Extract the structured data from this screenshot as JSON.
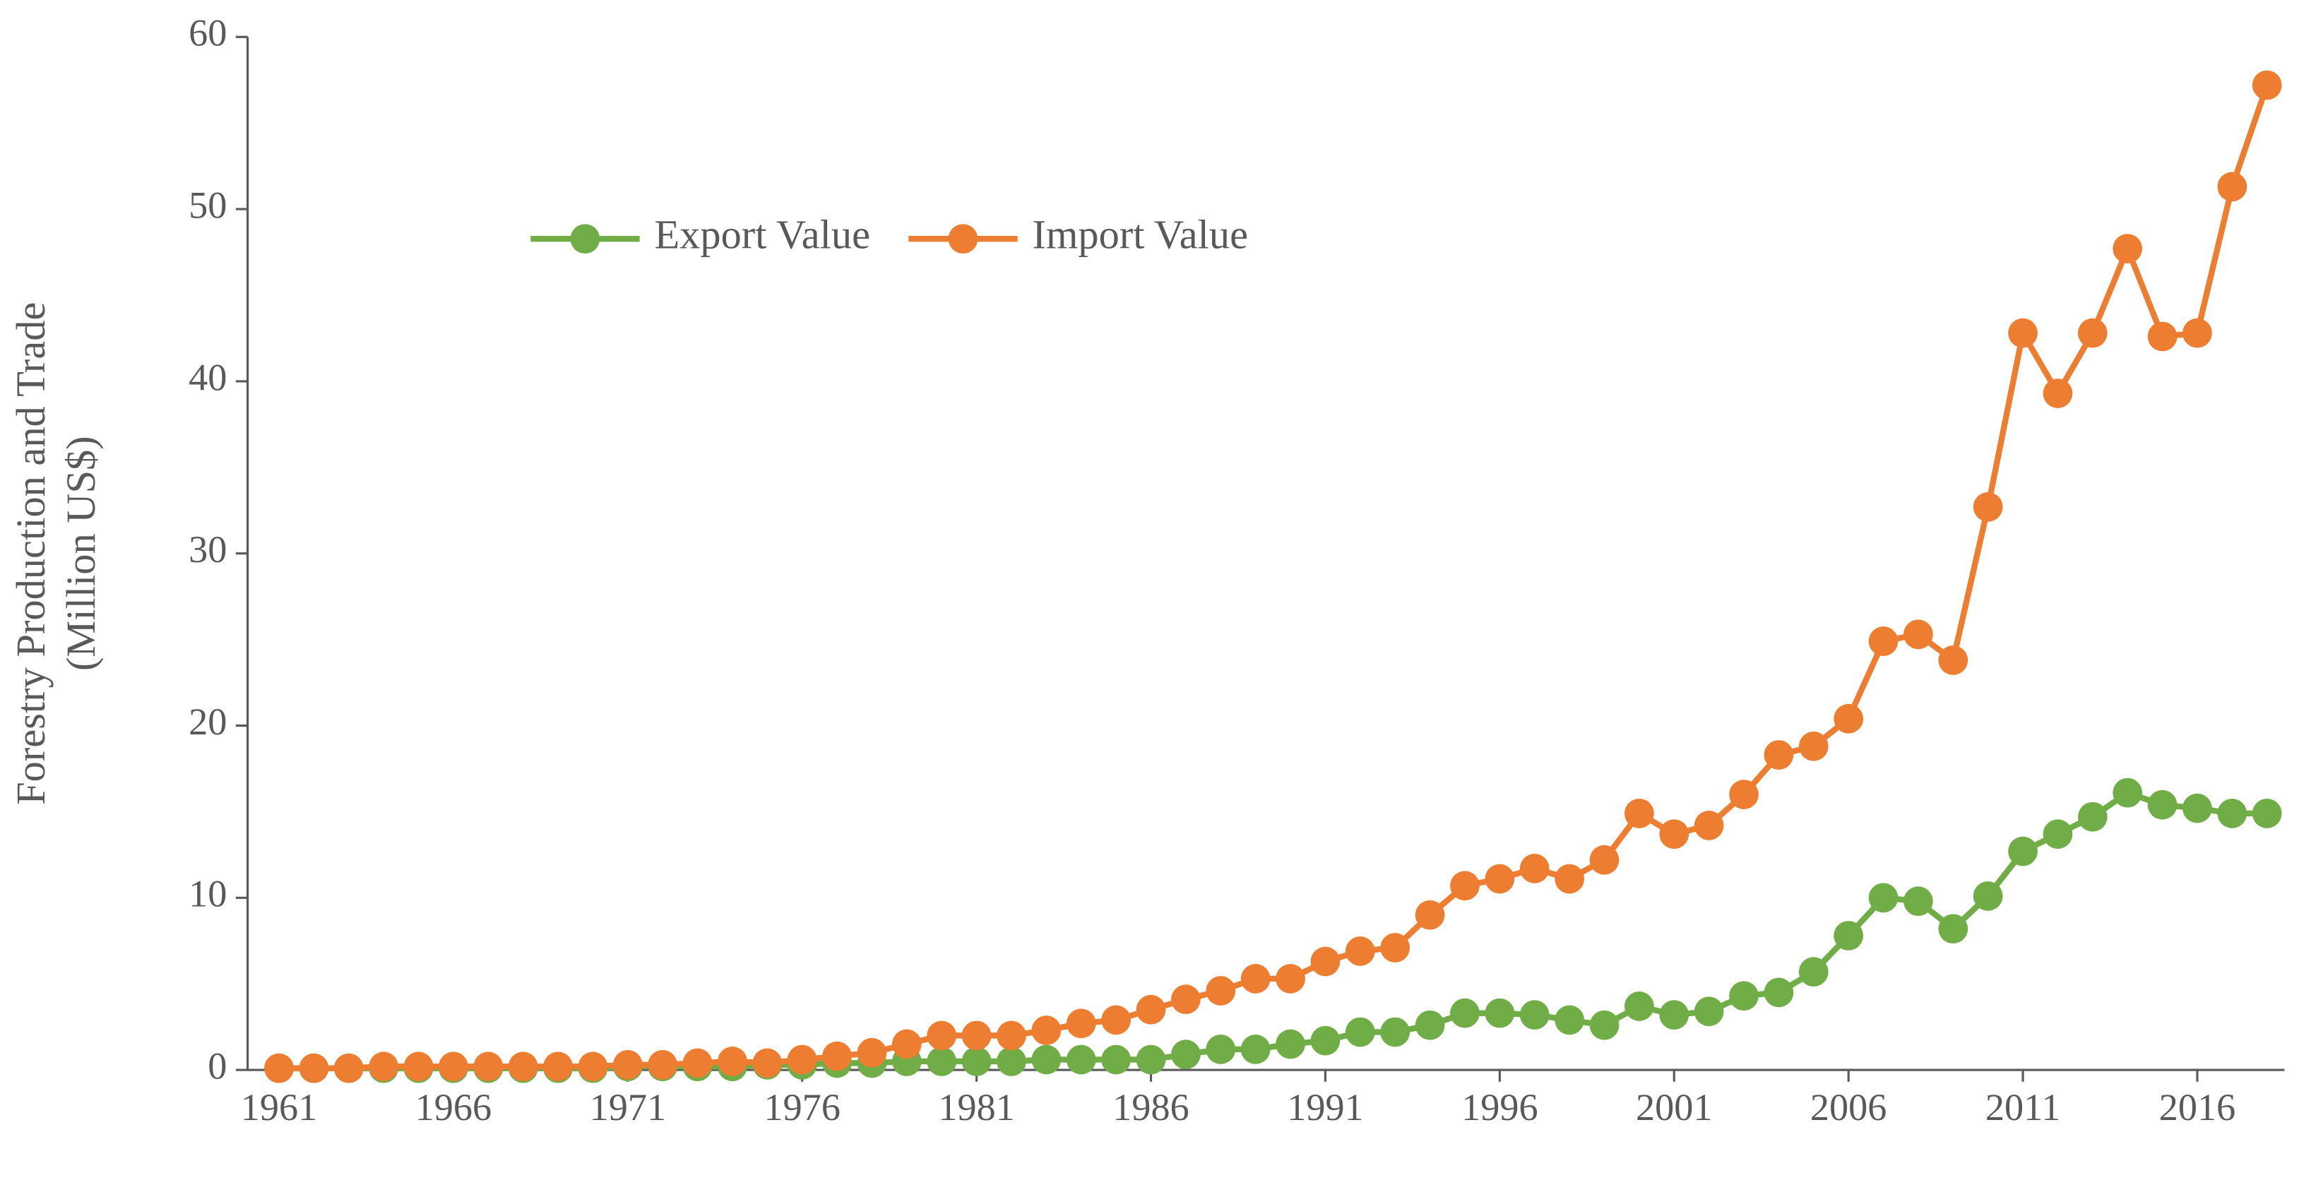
{
  "chart_data": {
    "type": "line",
    "ylabel": [
      "Forestry Production and Trade",
      "(Million US$)"
    ],
    "x": [
      1961,
      1962,
      1963,
      1964,
      1965,
      1966,
      1967,
      1968,
      1969,
      1970,
      1971,
      1972,
      1973,
      1974,
      1975,
      1976,
      1977,
      1978,
      1979,
      1980,
      1981,
      1982,
      1983,
      1984,
      1985,
      1986,
      1987,
      1988,
      1989,
      1990,
      1991,
      1992,
      1993,
      1994,
      1995,
      1996,
      1997,
      1998,
      1999,
      2000,
      2001,
      2002,
      2003,
      2004,
      2005,
      2006,
      2007,
      2008,
      2009,
      2010,
      2011,
      2012,
      2013,
      2014,
      2015,
      2016,
      2017,
      2018
    ],
    "series": [
      {
        "name": "Export Value",
        "color": "#70ad47",
        "values": [
          0.1,
          0.1,
          0.1,
          0.1,
          0.1,
          0.1,
          0.1,
          0.1,
          0.1,
          0.1,
          0.2,
          0.2,
          0.2,
          0.2,
          0.3,
          0.3,
          0.4,
          0.4,
          0.5,
          0.5,
          0.5,
          0.5,
          0.6,
          0.6,
          0.6,
          0.6,
          0.9,
          1.2,
          1.2,
          1.5,
          1.7,
          2.2,
          2.2,
          2.6,
          3.3,
          3.3,
          3.2,
          2.9,
          2.6,
          3.7,
          3.2,
          3.4,
          4.3,
          4.5,
          5.7,
          7.8,
          10.0,
          9.8,
          8.2,
          10.1,
          12.7,
          13.7,
          14.7,
          16.1,
          15.4,
          15.2,
          14.9,
          14.9
        ]
      },
      {
        "name": "Import Value",
        "color": "#ed7d31",
        "values": [
          0.1,
          0.1,
          0.1,
          0.2,
          0.2,
          0.2,
          0.2,
          0.2,
          0.2,
          0.2,
          0.3,
          0.3,
          0.4,
          0.5,
          0.4,
          0.6,
          0.8,
          1.0,
          1.5,
          2.0,
          2.0,
          2.0,
          2.3,
          2.7,
          2.9,
          3.5,
          4.1,
          4.6,
          5.3,
          5.3,
          6.3,
          6.9,
          7.1,
          9.0,
          10.7,
          11.1,
          11.7,
          11.1,
          12.2,
          14.9,
          13.7,
          14.2,
          16.0,
          18.3,
          18.8,
          20.4,
          24.9,
          25.3,
          23.8,
          32.7,
          42.8,
          39.3,
          42.8,
          47.7,
          42.6,
          42.8,
          51.3,
          57.2
        ]
      }
    ],
    "xlim": [
      1960.1,
      2018.5
    ],
    "xticks": [
      1961,
      1966,
      1971,
      1976,
      1981,
      1986,
      1991,
      1996,
      2001,
      2006,
      2011,
      2016
    ],
    "ylim": [
      0,
      60
    ],
    "yticks": [
      0,
      10,
      20,
      30,
      40,
      50,
      60
    ],
    "grid": false,
    "legend": "upper left"
  }
}
